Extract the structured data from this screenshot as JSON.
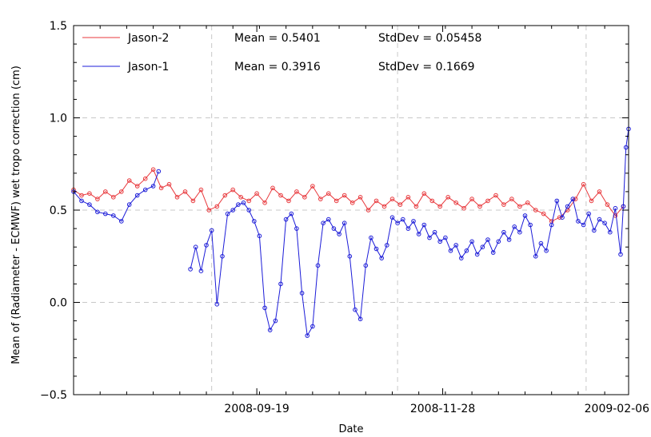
{
  "chart_data": {
    "type": "line",
    "title": "",
    "xlabel": "Date",
    "ylabel": "Mean of (Radiameter - ECMWF) wet tropo correction (cm)",
    "x_axis": {
      "type": "date",
      "range": [
        "2008-07-12",
        "2009-02-06"
      ],
      "tick_labels": [
        "2008-09-19",
        "2008-11-28",
        "2009-02-06"
      ],
      "tick_values": [
        "2008-09-19",
        "2008-11-28",
        "2009-02-06"
      ]
    },
    "y_axis": {
      "range": [
        -0.5,
        1.5
      ],
      "tick_values": [
        -0.5,
        0.0,
        0.5,
        1.0,
        1.5
      ],
      "tick_labels": [
        "−0.5",
        "0.0",
        "0.5",
        "1.0",
        "1.5"
      ]
    },
    "grid": {
      "horizontal": [
        0.0,
        0.5,
        1.0
      ],
      "vertical_dates": [
        "2008-09-02",
        "2008-11-11",
        "2009-01-21"
      ],
      "style": "dashed"
    },
    "legend_position": "top-left",
    "series": [
      {
        "name": "Jason-2",
        "color": "#e8383c",
        "marker": "open-circle",
        "stats": {
          "mean_label": "Mean = 0.5401",
          "std_label": "StdDev = 0.05458"
        },
        "points": [
          [
            "2008-07-12",
            0.61
          ],
          [
            "2008-07-15",
            0.58
          ],
          [
            "2008-07-18",
            0.59
          ],
          [
            "2008-07-21",
            0.56
          ],
          [
            "2008-07-24",
            0.6
          ],
          [
            "2008-07-27",
            0.57
          ],
          [
            "2008-07-30",
            0.6
          ],
          [
            "2008-08-02",
            0.66
          ],
          [
            "2008-08-05",
            0.63
          ],
          [
            "2008-08-08",
            0.67
          ],
          [
            "2008-08-11",
            0.72
          ],
          [
            "2008-08-14",
            0.62
          ],
          [
            "2008-08-17",
            0.64
          ],
          [
            "2008-08-20",
            0.57
          ],
          [
            "2008-08-23",
            0.6
          ],
          [
            "2008-08-26",
            0.55
          ],
          [
            "2008-08-29",
            0.61
          ],
          [
            "2008-09-01",
            0.5
          ],
          [
            "2008-09-04",
            0.52
          ],
          [
            "2008-09-07",
            0.58
          ],
          [
            "2008-09-10",
            0.61
          ],
          [
            "2008-09-13",
            0.57
          ],
          [
            "2008-09-16",
            0.55
          ],
          [
            "2008-09-19",
            0.59
          ],
          [
            "2008-09-22",
            0.54
          ],
          [
            "2008-09-25",
            0.62
          ],
          [
            "2008-09-28",
            0.58
          ],
          [
            "2008-10-01",
            0.55
          ],
          [
            "2008-10-04",
            0.6
          ],
          [
            "2008-10-07",
            0.57
          ],
          [
            "2008-10-10",
            0.63
          ],
          [
            "2008-10-13",
            0.56
          ],
          [
            "2008-10-16",
            0.59
          ],
          [
            "2008-10-19",
            0.55
          ],
          [
            "2008-10-22",
            0.58
          ],
          [
            "2008-10-25",
            0.54
          ],
          [
            "2008-10-28",
            0.57
          ],
          [
            "2008-10-31",
            0.5
          ],
          [
            "2008-11-03",
            0.55
          ],
          [
            "2008-11-06",
            0.52
          ],
          [
            "2008-11-09",
            0.56
          ],
          [
            "2008-11-12",
            0.53
          ],
          [
            "2008-11-15",
            0.57
          ],
          [
            "2008-11-18",
            0.52
          ],
          [
            "2008-11-21",
            0.59
          ],
          [
            "2008-11-24",
            0.55
          ],
          [
            "2008-11-27",
            0.52
          ],
          [
            "2008-11-30",
            0.57
          ],
          [
            "2008-12-03",
            0.54
          ],
          [
            "2008-12-06",
            0.51
          ],
          [
            "2008-12-09",
            0.56
          ],
          [
            "2008-12-12",
            0.52
          ],
          [
            "2008-12-15",
            0.55
          ],
          [
            "2008-12-18",
            0.58
          ],
          [
            "2008-12-21",
            0.53
          ],
          [
            "2008-12-24",
            0.56
          ],
          [
            "2008-12-27",
            0.52
          ],
          [
            "2008-12-30",
            0.54
          ],
          [
            "2009-01-02",
            0.5
          ],
          [
            "2009-01-05",
            0.48
          ],
          [
            "2009-01-08",
            0.44
          ],
          [
            "2009-01-11",
            0.46
          ],
          [
            "2009-01-14",
            0.5
          ],
          [
            "2009-01-17",
            0.56
          ],
          [
            "2009-01-20",
            0.64
          ],
          [
            "2009-01-23",
            0.55
          ],
          [
            "2009-01-26",
            0.6
          ],
          [
            "2009-01-29",
            0.53
          ],
          [
            "2009-02-01",
            0.47
          ],
          [
            "2009-02-04",
            0.52
          ]
        ]
      },
      {
        "name": "Jason-1",
        "color": "#1c1cd8",
        "marker": "open-circle",
        "stats": {
          "mean_label": "Mean = 0.3916",
          "std_label": "StdDev = 0.1669"
        },
        "segments": [
          [
            [
              "2008-07-12",
              0.6
            ],
            [
              "2008-07-15",
              0.55
            ],
            [
              "2008-07-18",
              0.53
            ],
            [
              "2008-07-21",
              0.49
            ],
            [
              "2008-07-24",
              0.48
            ],
            [
              "2008-07-27",
              0.47
            ],
            [
              "2008-07-30",
              0.44
            ],
            [
              "2008-08-02",
              0.53
            ],
            [
              "2008-08-05",
              0.58
            ],
            [
              "2008-08-08",
              0.61
            ],
            [
              "2008-08-11",
              0.63
            ],
            [
              "2008-08-13",
              0.71
            ]
          ],
          [
            [
              "2008-08-25",
              0.18
            ],
            [
              "2008-08-27",
              0.3
            ],
            [
              "2008-08-29",
              0.17
            ],
            [
              "2008-08-31",
              0.31
            ],
            [
              "2008-09-02",
              0.39
            ],
            [
              "2008-09-04",
              -0.01
            ],
            [
              "2008-09-06",
              0.25
            ],
            [
              "2008-09-08",
              0.48
            ],
            [
              "2008-09-10",
              0.5
            ],
            [
              "2008-09-12",
              0.53
            ],
            [
              "2008-09-14",
              0.54
            ],
            [
              "2008-09-16",
              0.5
            ],
            [
              "2008-09-18",
              0.44
            ],
            [
              "2008-09-20",
              0.36
            ],
            [
              "2008-09-22",
              -0.03
            ],
            [
              "2008-09-24",
              -0.15
            ],
            [
              "2008-09-26",
              -0.1
            ],
            [
              "2008-09-28",
              0.1
            ],
            [
              "2008-09-30",
              0.45
            ],
            [
              "2008-10-02",
              0.48
            ],
            [
              "2008-10-04",
              0.4
            ],
            [
              "2008-10-06",
              0.05
            ],
            [
              "2008-10-08",
              -0.18
            ],
            [
              "2008-10-10",
              -0.13
            ],
            [
              "2008-10-12",
              0.2
            ],
            [
              "2008-10-14",
              0.43
            ],
            [
              "2008-10-16",
              0.45
            ],
            [
              "2008-10-18",
              0.4
            ],
            [
              "2008-10-20",
              0.37
            ],
            [
              "2008-10-22",
              0.43
            ],
            [
              "2008-10-24",
              0.25
            ],
            [
              "2008-10-26",
              -0.04
            ],
            [
              "2008-10-28",
              -0.09
            ],
            [
              "2008-10-30",
              0.2
            ],
            [
              "2008-11-01",
              0.35
            ],
            [
              "2008-11-03",
              0.29
            ],
            [
              "2008-11-05",
              0.24
            ],
            [
              "2008-11-07",
              0.31
            ],
            [
              "2008-11-09",
              0.46
            ],
            [
              "2008-11-11",
              0.43
            ],
            [
              "2008-11-13",
              0.45
            ],
            [
              "2008-11-15",
              0.4
            ],
            [
              "2008-11-17",
              0.44
            ],
            [
              "2008-11-19",
              0.37
            ],
            [
              "2008-11-21",
              0.42
            ],
            [
              "2008-11-23",
              0.35
            ],
            [
              "2008-11-25",
              0.38
            ],
            [
              "2008-11-27",
              0.33
            ],
            [
              "2008-11-29",
              0.35
            ],
            [
              "2008-12-01",
              0.28
            ],
            [
              "2008-12-03",
              0.31
            ],
            [
              "2008-12-05",
              0.24
            ],
            [
              "2008-12-07",
              0.28
            ],
            [
              "2008-12-09",
              0.33
            ],
            [
              "2008-12-11",
              0.26
            ],
            [
              "2008-12-13",
              0.3
            ],
            [
              "2008-12-15",
              0.34
            ],
            [
              "2008-12-17",
              0.27
            ],
            [
              "2008-12-19",
              0.33
            ],
            [
              "2008-12-21",
              0.38
            ],
            [
              "2008-12-23",
              0.34
            ],
            [
              "2008-12-25",
              0.41
            ],
            [
              "2008-12-27",
              0.38
            ],
            [
              "2008-12-29",
              0.47
            ],
            [
              "2008-12-31",
              0.42
            ],
            [
              "2009-01-02",
              0.25
            ],
            [
              "2009-01-04",
              0.32
            ],
            [
              "2009-01-06",
              0.28
            ],
            [
              "2009-01-08",
              0.42
            ],
            [
              "2009-01-10",
              0.55
            ],
            [
              "2009-01-12",
              0.46
            ],
            [
              "2009-01-14",
              0.52
            ],
            [
              "2009-01-16",
              0.56
            ],
            [
              "2009-01-18",
              0.44
            ],
            [
              "2009-01-20",
              0.42
            ],
            [
              "2009-01-22",
              0.48
            ],
            [
              "2009-01-24",
              0.39
            ],
            [
              "2009-01-26",
              0.45
            ],
            [
              "2009-01-28",
              0.43
            ],
            [
              "2009-01-30",
              0.38
            ],
            [
              "2009-02-01",
              0.51
            ],
            [
              "2009-02-03",
              0.26
            ],
            [
              "2009-02-04",
              0.52
            ],
            [
              "2009-02-05",
              0.84
            ],
            [
              "2009-02-06",
              0.94
            ]
          ]
        ]
      }
    ]
  }
}
